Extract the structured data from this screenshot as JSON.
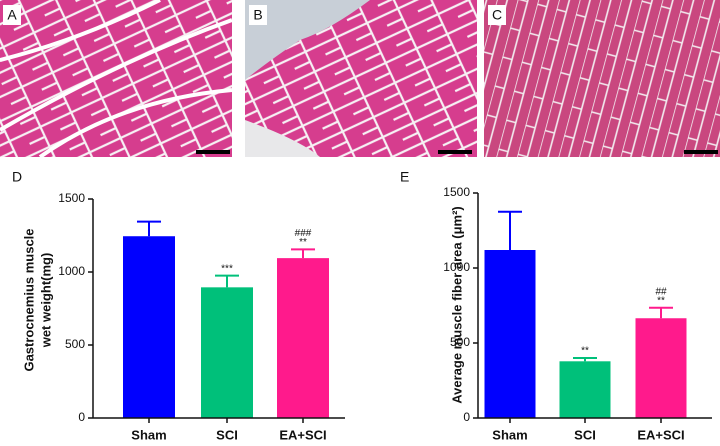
{
  "panels": [
    "A",
    "B",
    "C"
  ],
  "chart_data": [
    {
      "type": "bar",
      "panel_label": "D",
      "ylabel": [
        "Gastrocnemius muscle",
        "wet weight(mg)"
      ],
      "categories": [
        "Sham",
        "SCI",
        "EA+SCI"
      ],
      "values": [
        1245,
        895,
        1095
      ],
      "errors": [
        100,
        80,
        60
      ],
      "colors": [
        "#0000ff",
        "#00c07a",
        "#ff1a8c"
      ],
      "annotations": [
        [],
        [
          "***"
        ],
        [
          "###",
          "**"
        ]
      ],
      "ylim": [
        0,
        1500
      ],
      "yticks": [
        0,
        500,
        1000,
        1500
      ]
    },
    {
      "type": "bar",
      "panel_label": "E",
      "ylabel": [
        "Average muscle fiber area (μm²)"
      ],
      "categories": [
        "Sham",
        "SCI",
        "EA+SCI"
      ],
      "values": [
        1120,
        378,
        665
      ],
      "errors": [
        255,
        22,
        70
      ],
      "colors": [
        "#0000ff",
        "#00c07a",
        "#ff1a8c"
      ],
      "annotations": [
        [],
        [
          "**"
        ],
        [
          "##",
          "**"
        ]
      ],
      "ylim": [
        0,
        1500
      ],
      "yticks": [
        0,
        500,
        1000,
        1500
      ]
    }
  ]
}
